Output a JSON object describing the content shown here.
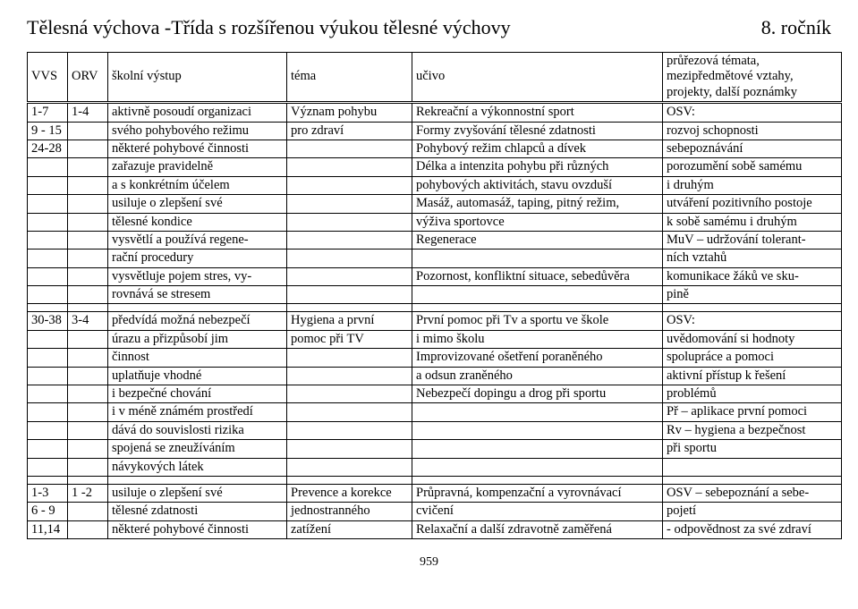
{
  "header": {
    "title": "Tělesná výchova -Třída s rozšířenou výukou tělesné výchovy",
    "grade": "8. ročník"
  },
  "columns": {
    "vvs": "VVS",
    "orv": "ORV",
    "output": "školní výstup",
    "tema": "téma",
    "ucivo": "učivo",
    "notes": "průřezová témata, mezipředmětové vztahy, projekty, další poznámky"
  },
  "block1": {
    "rows": [
      {
        "vvs": "1-7",
        "orv": "1-4",
        "out": "aktivně posoudí organizaci",
        "tema": "Význam pohybu",
        "ucivo": "Rekreační a výkonnostní sport",
        "notes": "OSV:"
      },
      {
        "vvs": "9 - 15",
        "orv": "",
        "out": "svého pohybového režimu",
        "tema": "pro zdraví",
        "ucivo": "Formy zvyšování tělesné zdatnosti",
        "notes": "rozvoj schopnosti"
      },
      {
        "vvs": "24-28",
        "orv": "",
        "out": "některé pohybové činnosti",
        "tema": "",
        "ucivo": "Pohybový režim chlapců a dívek",
        "notes": "sebepoznávání"
      },
      {
        "vvs": "",
        "orv": "",
        "out": "zařazuje pravidelně",
        "tema": "",
        "ucivo": "Délka a intenzita pohybu při různých",
        "notes": " porozumění sobě samému"
      },
      {
        "vvs": "",
        "orv": "",
        "out": "a s konkrétním účelem",
        "tema": "",
        "ucivo": "pohybových  aktivitách, stavu ovzduší",
        "notes": "i druhým"
      },
      {
        "vvs": "",
        "orv": "",
        "out": "usiluje o zlepšení své",
        "tema": "",
        "ucivo": "Masáž, automasáž, taping, pitný režim,",
        "notes": "utváření pozitivního postoje"
      },
      {
        "vvs": "",
        "orv": "",
        "out": "tělesné kondice",
        "tema": "",
        "ucivo": "výživa sportovce",
        "notes": " k sobě samému i druhým"
      },
      {
        "vvs": "",
        "orv": "",
        "out": "vysvětlí a používá regene-",
        "tema": "",
        "ucivo": "Regenerace",
        "notes": "MuV – udržování tolerant-"
      },
      {
        "vvs": "",
        "orv": "",
        "out": "rační procedury",
        "tema": "",
        "ucivo": "",
        "notes": "ních vztahů"
      },
      {
        "vvs": "",
        "orv": "",
        "out": "vysvětluje pojem stres, vy-",
        "tema": "",
        "ucivo": "Pozornost, konfliktní situace, sebedůvěra",
        "notes": " komunikace žáků  ve sku-"
      },
      {
        "vvs": "",
        "orv": "",
        "out": "rovnává se stresem",
        "tema": "",
        "ucivo": "",
        "notes": "pině"
      }
    ]
  },
  "block2": {
    "rows": [
      {
        "vvs": "30-38",
        "orv": "3-4",
        "out": "předvídá možná nebezpečí",
        "tema": "Hygiena a první",
        "ucivo": "První pomoc při Tv a sportu ve škole",
        "notes": "OSV:"
      },
      {
        "vvs": "",
        "orv": "",
        "out": "úrazu a přizpůsobí jim",
        "tema": "pomoc při TV",
        "ucivo": "i mimo školu",
        "notes": " uvědomování si  hodnoty"
      },
      {
        "vvs": "",
        "orv": "",
        "out": "činnost",
        "tema": "",
        "ucivo": "Improvizované ošetření poraněného",
        "notes": "spolupráce a pomoci"
      },
      {
        "vvs": "",
        "orv": "",
        "out": "uplatňuje vhodné",
        "tema": "",
        "ucivo": "a odsun zraněného",
        "notes": " aktivní přístup k řešení"
      },
      {
        "vvs": "",
        "orv": "",
        "out": "i bezpečné chování",
        "tema": "",
        "ucivo": "Nebezpečí dopingu a drog při sportu",
        "notes": "problémů"
      },
      {
        "vvs": "",
        "orv": "",
        "out": "i v méně známém prostředí",
        "tema": "",
        "ucivo": "",
        "notes": "Př – aplikace první pomoci"
      },
      {
        "vvs": "",
        "orv": "",
        "out": "dává do souvislosti rizika",
        "tema": "",
        "ucivo": "",
        "notes": "Rv – hygiena a bezpečnost"
      },
      {
        "vvs": "",
        "orv": "",
        "out": "spojená se zneužíváním",
        "tema": "",
        "ucivo": "",
        "notes": " při sportu"
      },
      {
        "vvs": "",
        "orv": "",
        "out": "návykových látek",
        "tema": "",
        "ucivo": "",
        "notes": ""
      }
    ]
  },
  "block3": {
    "rows": [
      {
        "vvs": "1-3",
        "orv": "1 -2",
        "out": "usiluje o zlepšení své",
        "tema": "Prevence a korekce",
        "ucivo": "Průpravná, kompenzační a vyrovnávací",
        "notes": "OSV – sebepoznání a sebe-"
      },
      {
        "vvs": "6 - 9",
        "orv": "",
        "out": "tělesné zdatnosti",
        "tema": "jednostranného",
        "ucivo": "cvičení",
        "notes": "pojetí"
      },
      {
        "vvs": "11,14",
        "orv": "",
        "out": "některé pohybové činnosti",
        "tema": "zatížení",
        "ucivo": "Relaxační a další zdravotně zaměřená",
        "notes": "-  odpovědnost za své zdraví"
      }
    ]
  },
  "pageNumber": "959"
}
